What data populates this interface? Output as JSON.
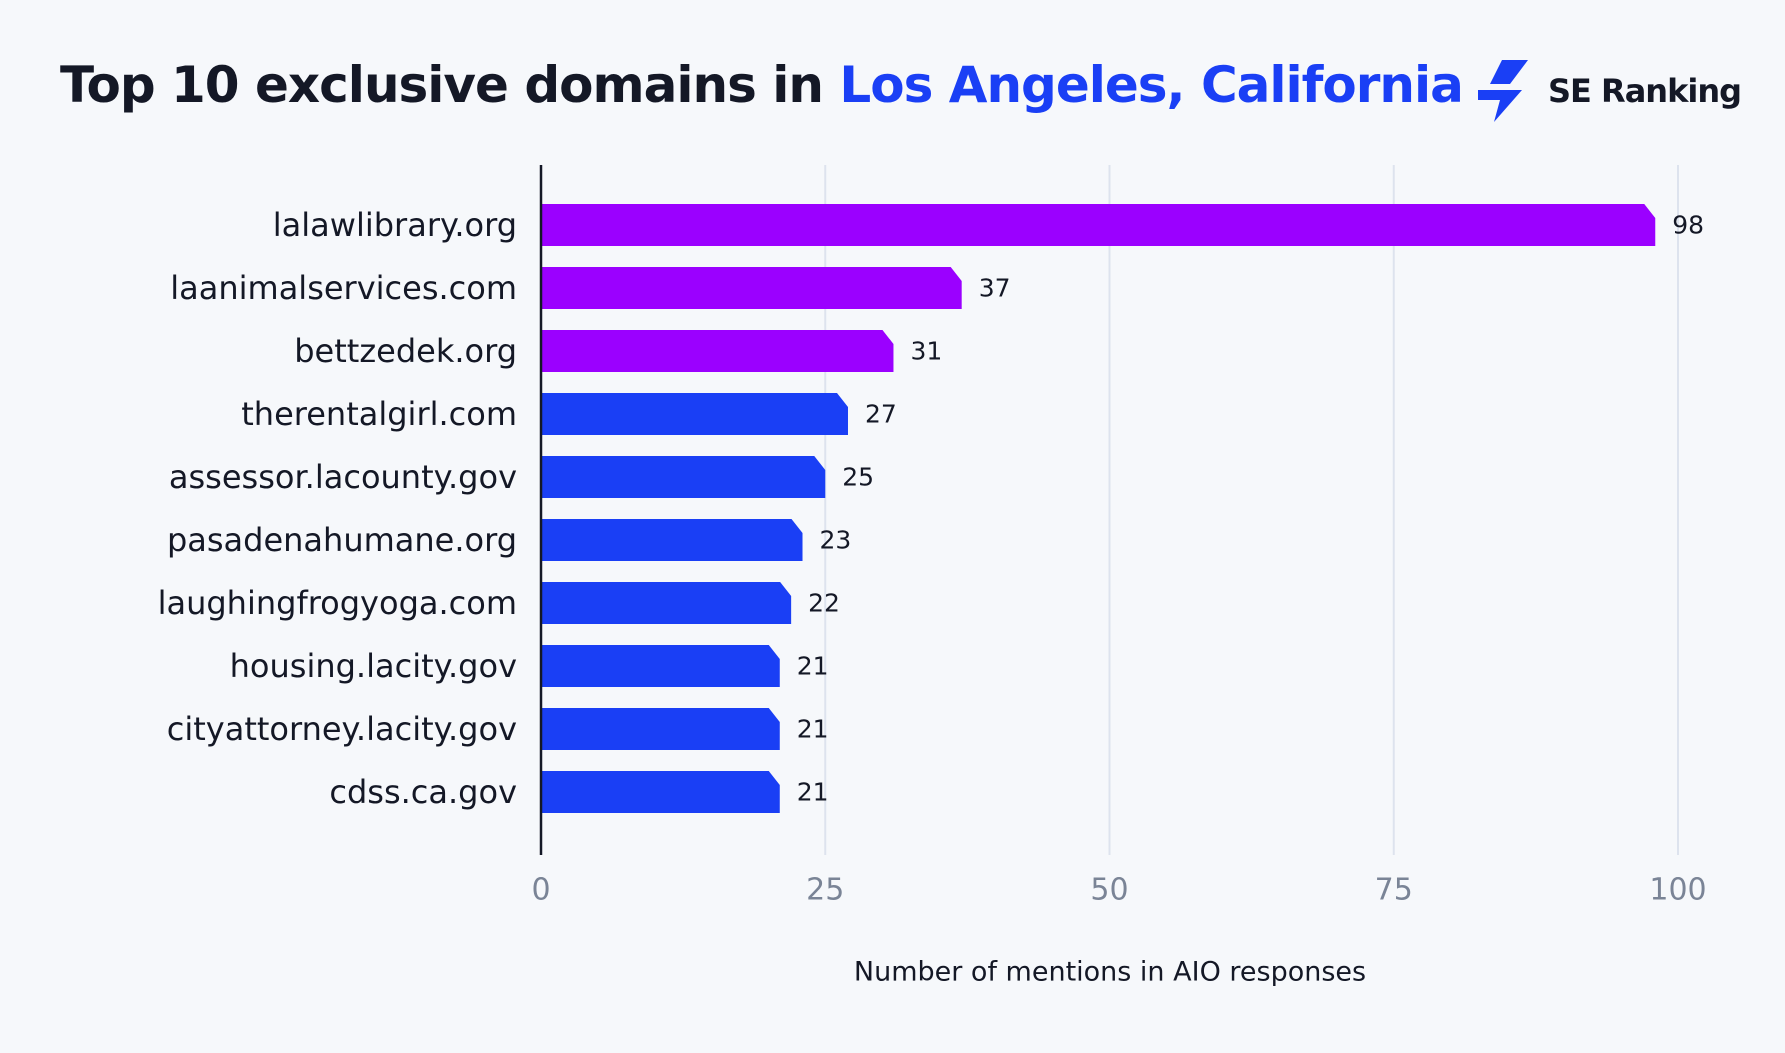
{
  "header": {
    "title_prefix": "Top 10 exclusive domains in ",
    "title_highlight": "Los Angeles, California",
    "brand_name": "SE Ranking",
    "brand_icon": "lightning-bolt-icon"
  },
  "colors": {
    "highlight": "#9b00ff",
    "primary": "#1a3ff5",
    "title_accent": "#1a3ff5",
    "grid": "#dde3ee",
    "axis": "#141826"
  },
  "chart_data": {
    "type": "bar",
    "orientation": "horizontal",
    "title": "Top 10 exclusive domains in Los Angeles, California",
    "xlabel": "Number of mentions in AIO responses",
    "ylabel": "",
    "xlim": [
      0,
      100
    ],
    "xticks": [
      0,
      25,
      50,
      75,
      100
    ],
    "grid": true,
    "categories": [
      "lalawlibrary.org",
      "laanimalservices.com",
      "bettzedek.org",
      "therentalgirl.com",
      "assessor.lacounty.gov",
      "pasadenahumane.org",
      "laughingfrogyoga.com",
      "housing.lacity.gov",
      "cityattorney.lacity.gov",
      "cdss.ca.gov"
    ],
    "values": [
      98,
      37,
      31,
      27,
      25,
      23,
      22,
      21,
      21,
      21
    ],
    "highlighted": [
      true,
      true,
      true,
      false,
      false,
      false,
      false,
      false,
      false,
      false
    ]
  }
}
